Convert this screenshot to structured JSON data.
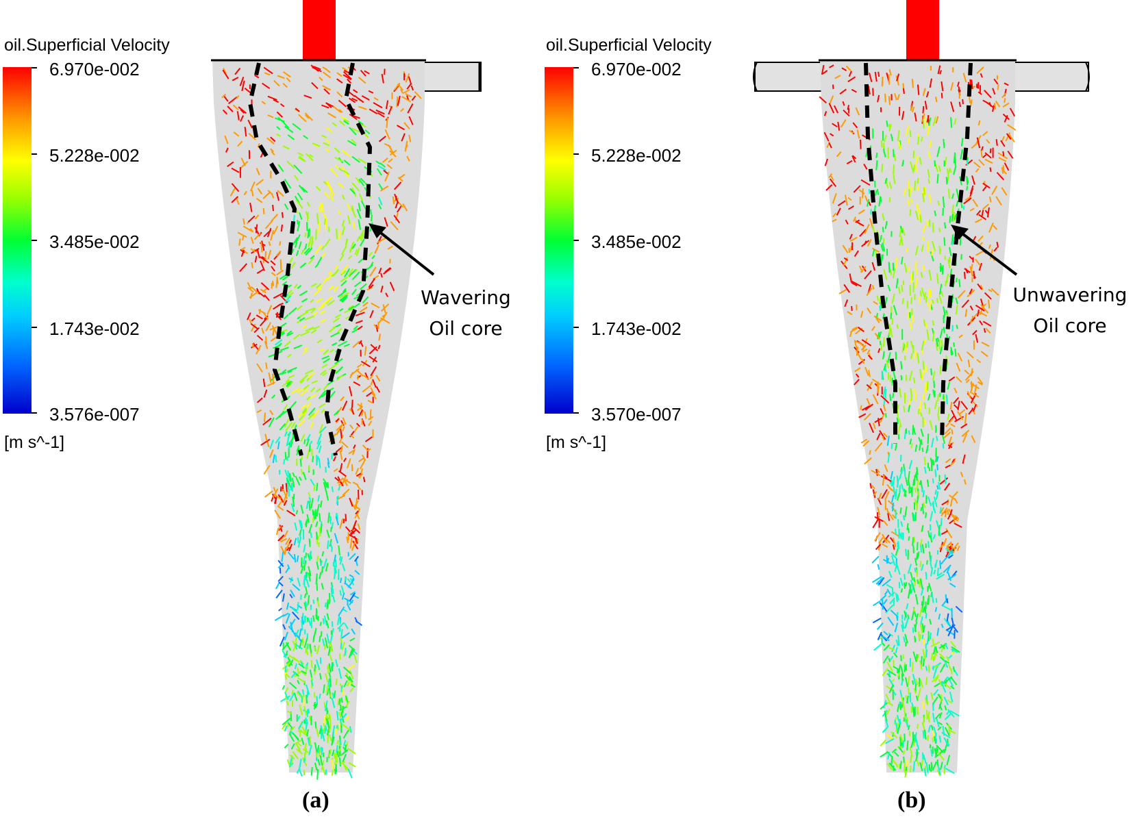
{
  "panels": [
    {
      "label": "(a)",
      "legend": {
        "title": "oil.Superficial Velocity",
        "ticks": [
          "6.970e-002",
          "5.228e-002",
          "3.485e-002",
          "1.743e-002",
          "3.576e-007"
        ],
        "units": "[m s^-1]"
      },
      "annotation": [
        "Wavering",
        "Oil core"
      ],
      "core_shape": "wavering"
    },
    {
      "label": "(b)",
      "legend": {
        "title": "oil.Superficial Velocity",
        "ticks": [
          "6.970e-002",
          "5.228e-002",
          "3.485e-002",
          "1.743e-002",
          "3.570e-007"
        ],
        "units": "[m s^-1]"
      },
      "annotation": [
        "Unwavering",
        "Oil core"
      ],
      "core_shape": "unwavering"
    }
  ],
  "colors": {
    "colormap": [
      "#0000cc",
      "#0066ff",
      "#00ccff",
      "#00ffcc",
      "#00ff33",
      "#99ff00",
      "#ffff00",
      "#ff9900",
      "#ff0000"
    ],
    "body": "#dcdcdc",
    "inlet": "#e2e2e2",
    "overflow": "#ff0000",
    "core_line": "#000000"
  }
}
